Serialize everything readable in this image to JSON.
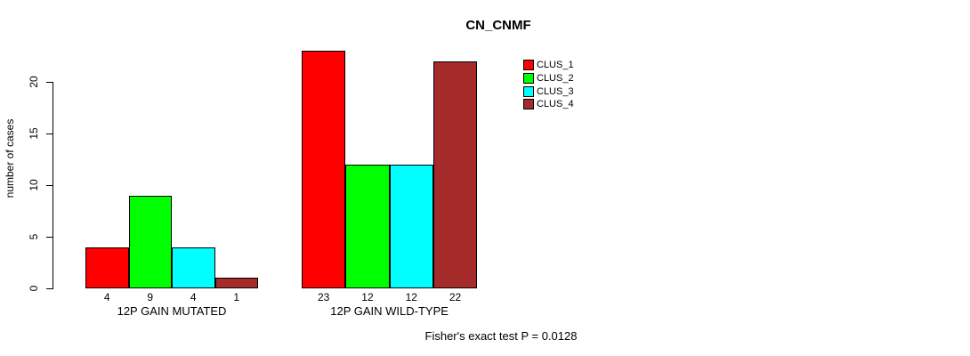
{
  "chart_data": {
    "type": "bar",
    "title": "CN_CNMF",
    "ylabel": "number of cases",
    "xlabel": "",
    "categories": [
      "12P GAIN MUTATED",
      "12P GAIN WILD-TYPE"
    ],
    "series": [
      {
        "name": "CLUS_1",
        "color": "#FF0000",
        "values": [
          4,
          23
        ]
      },
      {
        "name": "CLUS_2",
        "color": "#00FF00",
        "values": [
          9,
          12
        ]
      },
      {
        "name": "CLUS_3",
        "color": "#00FFFF",
        "values": [
          4,
          12
        ]
      },
      {
        "name": "CLUS_4",
        "color": "#A52A2A",
        "values": [
          1,
          22
        ]
      }
    ],
    "y_ticks": [
      0,
      5,
      10,
      15,
      20
    ],
    "ylim": [
      0,
      23
    ],
    "grid": false,
    "legend_position": "top-right",
    "bar_value_labels": true,
    "annotation": "Fisher's exact test P = 0.0128"
  }
}
